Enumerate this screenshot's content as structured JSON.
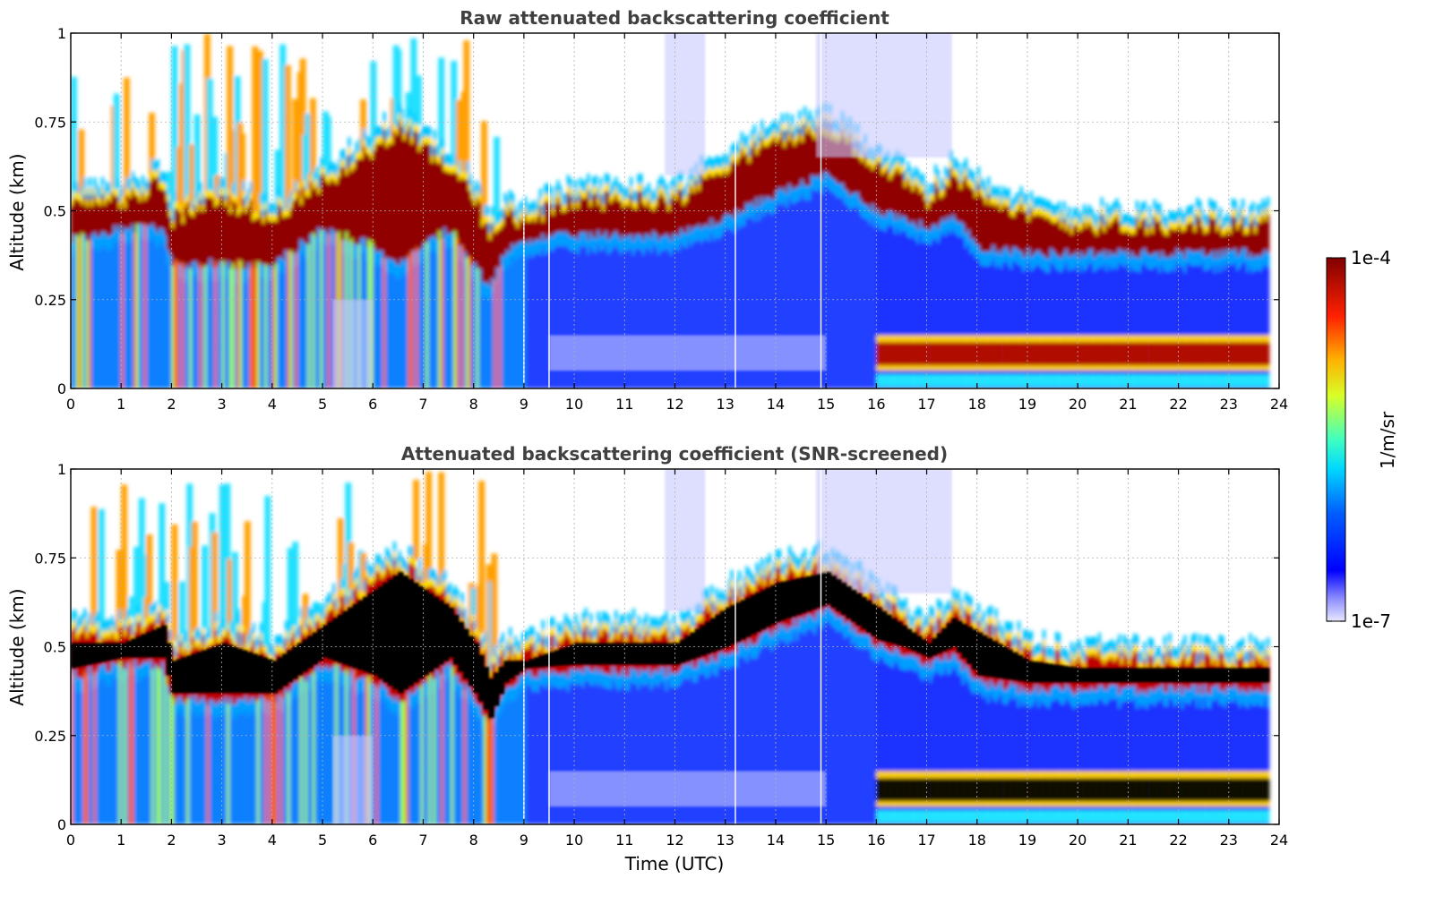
{
  "chart_data": [
    {
      "type": "heatmap",
      "title": "Raw attenuated backscattering coefficient",
      "xlabel": "",
      "ylabel": "Altitude (km)",
      "xlim": [
        0,
        24
      ],
      "ylim": [
        0,
        1
      ],
      "xticks": [
        0,
        1,
        2,
        3,
        4,
        5,
        6,
        7,
        8,
        9,
        10,
        11,
        12,
        13,
        14,
        15,
        16,
        17,
        18,
        19,
        20,
        21,
        22,
        23,
        24
      ],
      "yticks": [
        0,
        0.25,
        0.5,
        0.75,
        1
      ],
      "ytick_labels": [
        "0",
        "0.25",
        "0.5",
        "0.75",
        "1"
      ],
      "grid": true,
      "layers": [
        {
          "name": "cloud-top",
          "x": [
            0,
            1,
            1.8,
            2,
            3,
            4,
            5,
            6,
            6.5,
            7,
            7.5,
            8,
            8.3,
            8.6,
            9,
            10,
            11,
            12,
            13,
            14,
            15,
            15.5,
            16,
            16.5,
            17,
            17.5,
            18,
            19,
            20,
            21,
            22,
            23,
            23.8
          ],
          "y": [
            0.55,
            0.55,
            0.6,
            0.5,
            0.55,
            0.5,
            0.6,
            0.7,
            0.75,
            0.7,
            0.65,
            0.55,
            0.45,
            0.5,
            0.5,
            0.55,
            0.55,
            0.55,
            0.65,
            0.72,
            0.75,
            0.7,
            0.65,
            0.6,
            0.55,
            0.62,
            0.58,
            0.5,
            0.48,
            0.48,
            0.48,
            0.48,
            0.48
          ]
        },
        {
          "name": "cloud-base",
          "x": [
            0,
            1,
            1.8,
            2,
            3,
            4,
            5,
            6,
            6.5,
            7,
            7.5,
            8,
            8.3,
            8.6,
            9,
            10,
            11,
            12,
            13,
            14,
            15,
            15.5,
            16,
            16.5,
            17,
            17.5,
            18,
            19,
            20,
            21,
            22,
            23,
            23.8
          ],
          "y": [
            0.42,
            0.45,
            0.45,
            0.35,
            0.35,
            0.35,
            0.45,
            0.4,
            0.35,
            0.4,
            0.45,
            0.35,
            0.28,
            0.38,
            0.42,
            0.43,
            0.43,
            0.43,
            0.48,
            0.55,
            0.6,
            0.55,
            0.5,
            0.48,
            0.45,
            0.48,
            0.4,
            0.38,
            0.38,
            0.38,
            0.38,
            0.38,
            0.38
          ]
        },
        {
          "name": "low-layer",
          "x_range": [
            16,
            23.8
          ],
          "y_range": [
            0.05,
            0.13
          ]
        }
      ]
    },
    {
      "type": "heatmap",
      "title": "Attenuated backscattering coefficient (SNR-screened)",
      "xlabel": "Time (UTC)",
      "ylabel": "Altitude (km)",
      "xlim": [
        0,
        24
      ],
      "ylim": [
        0,
        1
      ],
      "xticks": [
        0,
        1,
        2,
        3,
        4,
        5,
        6,
        7,
        8,
        9,
        10,
        11,
        12,
        13,
        14,
        15,
        16,
        17,
        18,
        19,
        20,
        21,
        22,
        23,
        24
      ],
      "yticks": [
        0,
        0.25,
        0.5,
        0.75,
        1
      ],
      "ytick_labels": [
        "0",
        "0.25",
        "0.5",
        "0.75",
        "1"
      ],
      "grid": true
    }
  ],
  "colorbar": {
    "label": "1/m/sr",
    "max_label": "1e-4",
    "min_label": "1e-7",
    "colormap": "jet",
    "scale": "log"
  },
  "colors": {
    "title": "#404040",
    "saturated": "#000000",
    "high": "#800000",
    "background": "#0000ff"
  }
}
